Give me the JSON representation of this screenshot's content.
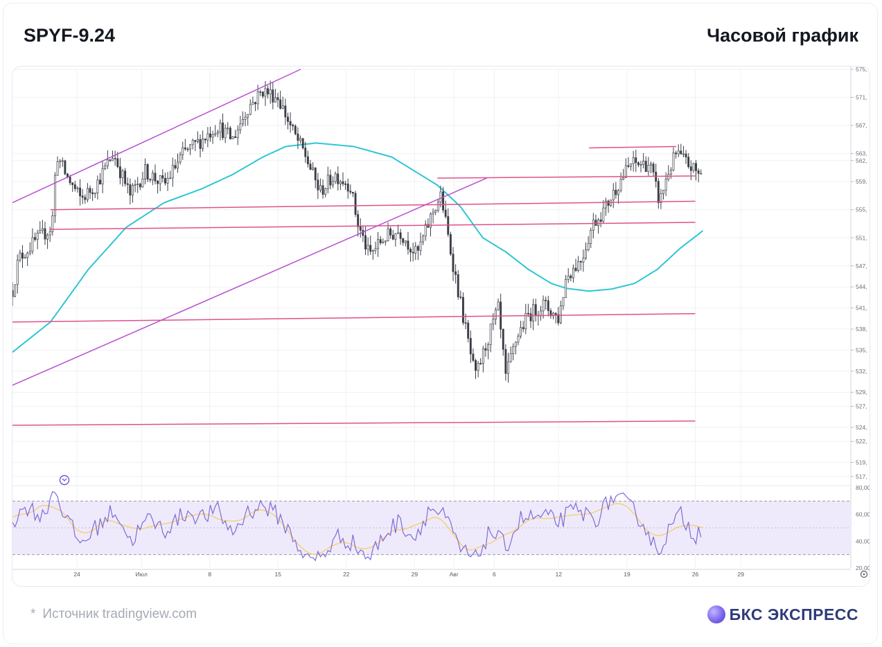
{
  "header": {
    "title": "SPYF-9.24",
    "subtitle": "Часовой график"
  },
  "footer": {
    "star": "*",
    "source": "Источник tradingview.com",
    "logo": "БКС ЭКСПРЕСС"
  },
  "colors": {
    "candle": "#3a3d45",
    "ma": "#2ec5d3",
    "channel": "#b84fd1",
    "level": "#e04f8a",
    "rsi": "#7e6bd6",
    "rsi_ma": "#f2d27a",
    "rsi_band": "#efeafb"
  },
  "chart_data": {
    "type": "candlestick",
    "title": "SPYF-9.24",
    "subtitle": "Часовой график",
    "ylim": [
      516,
      575
    ],
    "y_ticks": [
      "575,",
      "571,",
      "567,",
      "563,",
      "562,",
      "559,",
      "555,",
      "551,",
      "547,",
      "544,",
      "541,",
      "538,",
      "535,",
      "532,",
      "529,",
      "527,",
      "524,",
      "522,",
      "519,",
      "517,"
    ],
    "x_ticks": [
      "24",
      "Июл",
      "8",
      "15",
      "22",
      "29",
      "Авг",
      "6",
      "12",
      "19",
      "26",
      "29"
    ],
    "price_path": [
      {
        "t": 0,
        "v": 543.5
      },
      {
        "t": 0.8,
        "v": 548
      },
      {
        "t": 3,
        "v": 550.5
      },
      {
        "t": 5.2,
        "v": 552.5
      },
      {
        "t": 5.8,
        "v": 563
      },
      {
        "t": 7,
        "v": 560
      },
      {
        "t": 9,
        "v": 556.5
      },
      {
        "t": 11,
        "v": 558.5
      },
      {
        "t": 13.3,
        "v": 563
      },
      {
        "t": 15.5,
        "v": 557
      },
      {
        "t": 17.5,
        "v": 560.5
      },
      {
        "t": 20,
        "v": 558.5
      },
      {
        "t": 22.5,
        "v": 563
      },
      {
        "t": 25,
        "v": 565
      },
      {
        "t": 27,
        "v": 567
      },
      {
        "t": 29,
        "v": 565
      },
      {
        "t": 31,
        "v": 569.5
      },
      {
        "t": 33,
        "v": 572
      },
      {
        "t": 35,
        "v": 571
      },
      {
        "t": 37,
        "v": 566
      },
      {
        "t": 38.5,
        "v": 563
      },
      {
        "t": 40.5,
        "v": 557.5
      },
      {
        "t": 42.5,
        "v": 560
      },
      {
        "t": 44.5,
        "v": 558.5
      },
      {
        "t": 45.5,
        "v": 553
      },
      {
        "t": 47,
        "v": 548.5
      },
      {
        "t": 49,
        "v": 551
      },
      {
        "t": 51,
        "v": 552
      },
      {
        "t": 53.3,
        "v": 548.5
      },
      {
        "t": 55.5,
        "v": 555
      },
      {
        "t": 56.5,
        "v": 557
      },
      {
        "t": 57.6,
        "v": 550
      },
      {
        "t": 59,
        "v": 542
      },
      {
        "t": 61,
        "v": 531
      },
      {
        "t": 62.5,
        "v": 536
      },
      {
        "t": 64,
        "v": 541
      },
      {
        "t": 65,
        "v": 531
      },
      {
        "t": 66.5,
        "v": 537
      },
      {
        "t": 68,
        "v": 540
      },
      {
        "t": 70,
        "v": 541.5
      },
      {
        "t": 72,
        "v": 539.5
      },
      {
        "t": 73,
        "v": 545.5
      },
      {
        "t": 75,
        "v": 548
      },
      {
        "t": 76.5,
        "v": 553
      },
      {
        "t": 78,
        "v": 555
      },
      {
        "t": 80,
        "v": 559
      },
      {
        "t": 81.5,
        "v": 561.5
      },
      {
        "t": 84,
        "v": 561.5
      },
      {
        "t": 85.3,
        "v": 556
      },
      {
        "t": 86.3,
        "v": 560
      },
      {
        "t": 87.5,
        "v": 563
      },
      {
        "t": 89,
        "v": 561.5
      },
      {
        "t": 90.5,
        "v": 560
      },
      {
        "t": 91,
        "v": 561
      }
    ],
    "moving_average": [
      {
        "t": 0,
        "v": 534.7
      },
      {
        "t": 5,
        "v": 539
      },
      {
        "t": 10,
        "v": 546.5
      },
      {
        "t": 15,
        "v": 552.5
      },
      {
        "t": 20,
        "v": 556
      },
      {
        "t": 25,
        "v": 558
      },
      {
        "t": 29,
        "v": 560
      },
      {
        "t": 33,
        "v": 562.5
      },
      {
        "t": 36,
        "v": 564
      },
      {
        "t": 40,
        "v": 564.5
      },
      {
        "t": 45,
        "v": 564
      },
      {
        "t": 50,
        "v": 562.5
      },
      {
        "t": 53,
        "v": 560.5
      },
      {
        "t": 56,
        "v": 558.5
      },
      {
        "t": 59,
        "v": 555.5
      },
      {
        "t": 62,
        "v": 551
      },
      {
        "t": 65,
        "v": 549
      },
      {
        "t": 68,
        "v": 546.5
      },
      {
        "t": 71,
        "v": 544.5
      },
      {
        "t": 73,
        "v": 543.8
      },
      {
        "t": 76,
        "v": 543.4
      },
      {
        "t": 79,
        "v": 543.7
      },
      {
        "t": 82,
        "v": 544.5
      },
      {
        "t": 85,
        "v": 546.5
      },
      {
        "t": 88,
        "v": 549.5
      },
      {
        "t": 91,
        "v": 552
      }
    ],
    "channel_lines": [
      {
        "from": {
          "t": 0,
          "v": 556
        },
        "to": {
          "t": 38,
          "v": 575
        }
      },
      {
        "from": {
          "t": 0,
          "v": 530
        },
        "to": {
          "t": 62.5,
          "v": 559.5
        }
      }
    ],
    "levels": [
      {
        "from": {
          "t": 5,
          "v": 555
        },
        "to": {
          "t": 90,
          "v": 556.2
        }
      },
      {
        "from": {
          "t": 5,
          "v": 552.2
        },
        "to": {
          "t": 90,
          "v": 553.2
        }
      },
      {
        "from": {
          "t": 56,
          "v": 559.5
        },
        "to": {
          "t": 90,
          "v": 559.8
        }
      },
      {
        "from": {
          "t": 76,
          "v": 563.8
        },
        "to": {
          "t": 87.5,
          "v": 564
        }
      },
      {
        "from": {
          "t": 0,
          "v": 539
        },
        "to": {
          "t": 90,
          "v": 540.2
        }
      },
      {
        "from": {
          "t": 0,
          "v": 524.3
        },
        "to": {
          "t": 90,
          "v": 524.9
        }
      }
    ],
    "rsi": {
      "ylim": [
        20,
        80
      ],
      "y_ticks": [
        "80,00",
        "60,00",
        "40,00",
        "20,00"
      ],
      "band": [
        30,
        70
      ],
      "mid": 50,
      "path": [
        {
          "t": 0,
          "v": 55
        },
        {
          "t": 2,
          "v": 66
        },
        {
          "t": 4,
          "v": 58
        },
        {
          "t": 5.5,
          "v": 80
        },
        {
          "t": 7,
          "v": 58
        },
        {
          "t": 9,
          "v": 38
        },
        {
          "t": 11,
          "v": 50
        },
        {
          "t": 13.5,
          "v": 64
        },
        {
          "t": 15.5,
          "v": 40
        },
        {
          "t": 18,
          "v": 57
        },
        {
          "t": 20,
          "v": 48
        },
        {
          "t": 23,
          "v": 62
        },
        {
          "t": 25,
          "v": 58
        },
        {
          "t": 27,
          "v": 63
        },
        {
          "t": 29,
          "v": 46
        },
        {
          "t": 31,
          "v": 62
        },
        {
          "t": 33,
          "v": 67
        },
        {
          "t": 35,
          "v": 59
        },
        {
          "t": 37,
          "v": 43
        },
        {
          "t": 39,
          "v": 25
        },
        {
          "t": 41,
          "v": 30
        },
        {
          "t": 43,
          "v": 44
        },
        {
          "t": 45,
          "v": 38
        },
        {
          "t": 47,
          "v": 27
        },
        {
          "t": 49,
          "v": 45
        },
        {
          "t": 51,
          "v": 55
        },
        {
          "t": 53,
          "v": 42
        },
        {
          "t": 55,
          "v": 65
        },
        {
          "t": 57,
          "v": 58
        },
        {
          "t": 59,
          "v": 34
        },
        {
          "t": 61,
          "v": 26
        },
        {
          "t": 63,
          "v": 48
        },
        {
          "t": 65,
          "v": 36
        },
        {
          "t": 67,
          "v": 57
        },
        {
          "t": 70,
          "v": 58
        },
        {
          "t": 72,
          "v": 55
        },
        {
          "t": 74,
          "v": 63
        },
        {
          "t": 77,
          "v": 57
        },
        {
          "t": 79,
          "v": 73
        },
        {
          "t": 81,
          "v": 68
        },
        {
          "t": 83,
          "v": 55
        },
        {
          "t": 85,
          "v": 32
        },
        {
          "t": 86.5,
          "v": 48
        },
        {
          "t": 88,
          "v": 60
        },
        {
          "t": 90,
          "v": 44
        },
        {
          "t": 91,
          "v": 52
        }
      ]
    },
    "grid": true
  }
}
